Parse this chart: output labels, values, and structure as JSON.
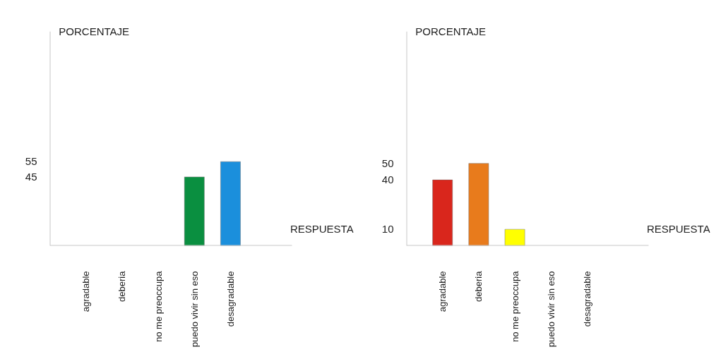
{
  "chart_data": [
    {
      "type": "bar",
      "xlabel": "RESPUESTA",
      "ylabel": "PORCENTAJE",
      "categories": [
        "agradable",
        "deberia",
        "no me preoccupa",
        "puedo vivir sin eso",
        "desagradable"
      ],
      "values": [
        null,
        null,
        null,
        45,
        55
      ],
      "colors": [
        "#d9261c",
        "#e87b1c",
        "#ffff00",
        "#0a8f40",
        "#1b8fdc"
      ],
      "ylim": [
        0,
        140
      ],
      "yticks": [
        45,
        55
      ]
    },
    {
      "type": "bar",
      "xlabel": "RESPUESTA",
      "ylabel": "PORCENTAJE",
      "categories": [
        "agradable",
        "deberia",
        "no me preoccupa",
        "puedo vivir sin eso",
        "desagradable"
      ],
      "values": [
        40,
        50,
        10,
        null,
        null
      ],
      "colors": [
        "#d9261c",
        "#e87b1c",
        "#ffff00",
        "#0a8f40",
        "#1b8fdc"
      ],
      "ylim": [
        0,
        130
      ],
      "yticks": [
        10,
        40,
        50
      ]
    }
  ]
}
